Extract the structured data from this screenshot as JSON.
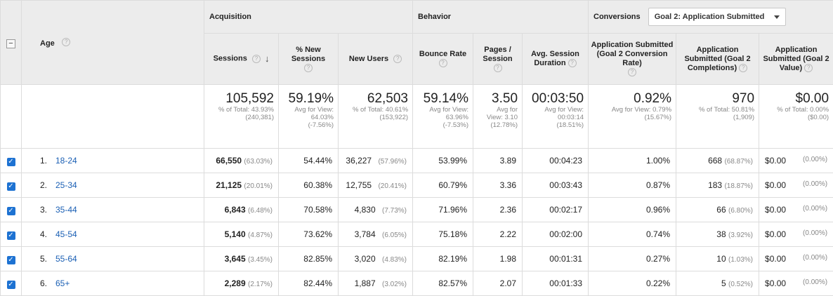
{
  "groups": {
    "acquisition": "Acquisition",
    "behavior": "Behavior",
    "conversions": "Conversions"
  },
  "goal_select": {
    "value": "Goal 2: Application Submitted"
  },
  "primary_dim": "Age",
  "columns": {
    "sessions": "Sessions",
    "new_sessions": "% New Sessions",
    "new_users": "New Users",
    "bounce": "Bounce Rate",
    "pages": "Pages / Session",
    "duration": "Avg. Session Duration",
    "conv_rate": "Application Submitted (Goal 2 Conversion Rate)",
    "completions": "Application Submitted (Goal 2 Completions)",
    "value": "Application Submitted (Goal 2 Value)"
  },
  "totals": {
    "sessions": {
      "big": "105,592",
      "small": "% of Total: 43.93% (240,381)"
    },
    "new_sessions": {
      "big": "59.19%",
      "small": "Avg for View: 64.03% (-7.56%)"
    },
    "new_users": {
      "big": "62,503",
      "small": "% of Total: 40.61% (153,922)"
    },
    "bounce": {
      "big": "59.14%",
      "small": "Avg for View: 63.96% (-7.53%)"
    },
    "pages": {
      "big": "3.50",
      "small": "Avg for View: 3.10 (12.78%)"
    },
    "duration": {
      "big": "00:03:50",
      "small": "Avg for View: 00:03:14 (18.51%)"
    },
    "conv_rate": {
      "big": "0.92%",
      "small": "Avg for View: 0.79% (15.67%)"
    },
    "completions": {
      "big": "970",
      "small": "% of Total: 50.81% (1,909)"
    },
    "value": {
      "big": "$0.00",
      "small": "% of Total: 0.00% ($0.00)"
    }
  },
  "rows": [
    {
      "idx": "1.",
      "age": "18-24",
      "sessions": "66,550",
      "sessions_pct": "(63.03%)",
      "new_sessions": "54.44%",
      "new_users": "36,227",
      "new_users_pct": "(57.96%)",
      "bounce": "53.99%",
      "pages": "3.89",
      "duration": "00:04:23",
      "conv_rate": "1.00%",
      "completions": "668",
      "completions_pct": "(68.87%)",
      "value": "$0.00",
      "value_pct": "(0.00%)"
    },
    {
      "idx": "2.",
      "age": "25-34",
      "sessions": "21,125",
      "sessions_pct": "(20.01%)",
      "new_sessions": "60.38%",
      "new_users": "12,755",
      "new_users_pct": "(20.41%)",
      "bounce": "60.79%",
      "pages": "3.36",
      "duration": "00:03:43",
      "conv_rate": "0.87%",
      "completions": "183",
      "completions_pct": "(18.87%)",
      "value": "$0.00",
      "value_pct": "(0.00%)"
    },
    {
      "idx": "3.",
      "age": "35-44",
      "sessions": "6,843",
      "sessions_pct": "(6.48%)",
      "new_sessions": "70.58%",
      "new_users": "4,830",
      "new_users_pct": "(7.73%)",
      "bounce": "71.96%",
      "pages": "2.36",
      "duration": "00:02:17",
      "conv_rate": "0.96%",
      "completions": "66",
      "completions_pct": "(6.80%)",
      "value": "$0.00",
      "value_pct": "(0.00%)"
    },
    {
      "idx": "4.",
      "age": "45-54",
      "sessions": "5,140",
      "sessions_pct": "(4.87%)",
      "new_sessions": "73.62%",
      "new_users": "3,784",
      "new_users_pct": "(6.05%)",
      "bounce": "75.18%",
      "pages": "2.22",
      "duration": "00:02:00",
      "conv_rate": "0.74%",
      "completions": "38",
      "completions_pct": "(3.92%)",
      "value": "$0.00",
      "value_pct": "(0.00%)"
    },
    {
      "idx": "5.",
      "age": "55-64",
      "sessions": "3,645",
      "sessions_pct": "(3.45%)",
      "new_sessions": "82.85%",
      "new_users": "3,020",
      "new_users_pct": "(4.83%)",
      "bounce": "82.19%",
      "pages": "1.98",
      "duration": "00:01:31",
      "conv_rate": "0.27%",
      "completions": "10",
      "completions_pct": "(1.03%)",
      "value": "$0.00",
      "value_pct": "(0.00%)"
    },
    {
      "idx": "6.",
      "age": "65+",
      "sessions": "2,289",
      "sessions_pct": "(2.17%)",
      "new_sessions": "82.44%",
      "new_users": "1,887",
      "new_users_pct": "(3.02%)",
      "bounce": "82.57%",
      "pages": "2.07",
      "duration": "00:01:33",
      "conv_rate": "0.22%",
      "completions": "5",
      "completions_pct": "(0.52%)",
      "value": "$0.00",
      "value_pct": "(0.00%)"
    }
  ]
}
